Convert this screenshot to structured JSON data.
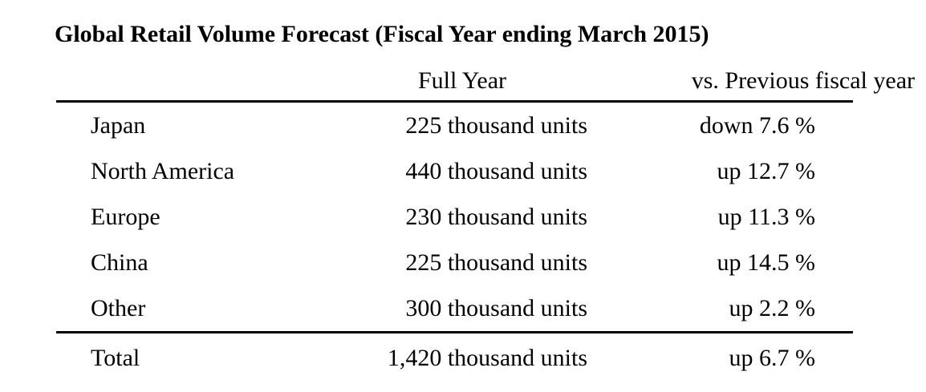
{
  "title": "Global Retail Volume Forecast (Fiscal Year ending March 2015)",
  "table": {
    "columns": {
      "region": "",
      "full_year": "Full Year",
      "vs_previous": "vs. Previous fiscal year"
    },
    "rows": [
      {
        "region": "Japan",
        "full_year": "225 thousand units",
        "vs_previous": "down 7.6 %"
      },
      {
        "region": "North America",
        "full_year": "440 thousand units",
        "vs_previous": "up 12.7 %"
      },
      {
        "region": "Europe",
        "full_year": "230 thousand units",
        "vs_previous": "up 11.3 %"
      },
      {
        "region": "China",
        "full_year": "225 thousand units",
        "vs_previous": "up 14.5 %"
      },
      {
        "region": "Other",
        "full_year": "300 thousand units",
        "vs_previous": "up 2.2 %"
      }
    ],
    "total": {
      "region": "Total",
      "full_year": "1,420 thousand units",
      "vs_previous": "up 6.7 %"
    }
  }
}
